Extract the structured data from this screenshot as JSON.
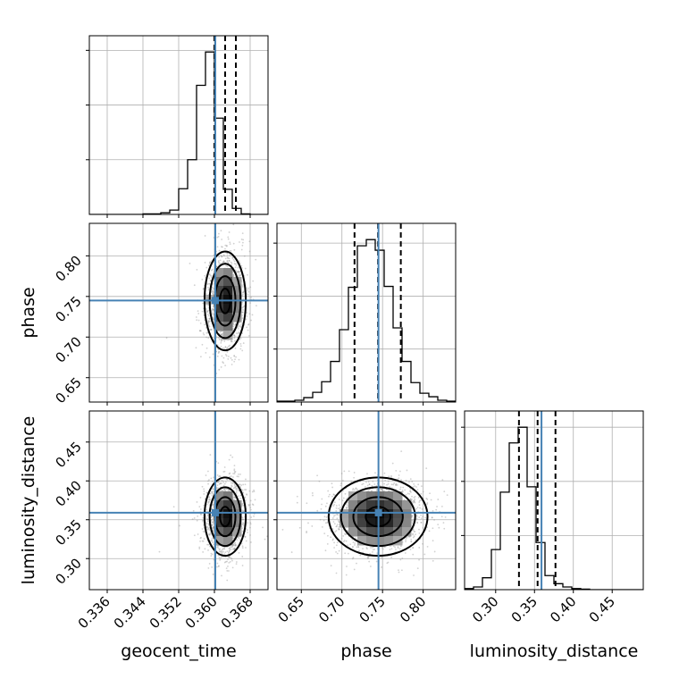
{
  "chart_data": {
    "type": "corner",
    "parameters": [
      {
        "name": "geocent_time",
        "label": "geocent_time",
        "range": [
          0.332,
          0.372
        ],
        "ticks": [
          0.336,
          0.344,
          0.352,
          0.36,
          0.368
        ],
        "tick_labels": [
          "0.336",
          "0.344",
          "0.352",
          "0.360",
          "0.368"
        ],
        "truth": 0.3602,
        "quantiles": [
          0.36,
          0.3624,
          0.3648
        ],
        "mean": 0.3624,
        "sd": 0.0022,
        "hist_bins": 20,
        "hist_counts": [
          0,
          0,
          0,
          0,
          0,
          0,
          1,
          1,
          3,
          8,
          47,
          100,
          236,
          297,
          176,
          46,
          11,
          1,
          0,
          0
        ]
      },
      {
        "name": "phase",
        "label": "phase",
        "range": [
          0.62,
          0.84
        ],
        "ticks": [
          0.65,
          0.7,
          0.75,
          0.8
        ],
        "tick_labels": [
          "0.65",
          "0.70",
          "0.75",
          "0.80"
        ],
        "truth": 0.745,
        "quantiles": [
          0.7155,
          0.7445,
          0.7725
        ],
        "mean": 0.7445,
        "sd": 0.029,
        "hist_bins": 20,
        "hist_counts": [
          1,
          1,
          2,
          5,
          11,
          23,
          46,
          82,
          130,
          177,
          184,
          172,
          131,
          84,
          46,
          22,
          10,
          6,
          2,
          1
        ]
      },
      {
        "name": "luminosity_distance",
        "label": "luminosity_distance",
        "range": [
          0.26,
          0.49
        ],
        "ticks": [
          0.3,
          0.35,
          0.4,
          0.45
        ],
        "tick_labels": [
          "0.30",
          "0.35",
          "0.40",
          "0.45"
        ],
        "truth": 0.359,
        "quantiles": [
          0.33,
          0.354,
          0.377
        ],
        "mean": 0.354,
        "sd": 0.024,
        "hist_bins": 20,
        "hist_counts": [
          2,
          5,
          22,
          74,
          180,
          271,
          300,
          190,
          87,
          26,
          11,
          5,
          2,
          1,
          0,
          0,
          0,
          0,
          0,
          0
        ]
      }
    ],
    "correlations": [
      [
        1,
        0.05,
        0.05
      ],
      [
        0.05,
        1,
        0.05
      ],
      [
        0.05,
        0.05,
        1
      ]
    ],
    "contour_levels_sigma": [
      0.5,
      1.0,
      1.5,
      2.0
    ],
    "truth_color": "#4682b4",
    "hist_color": "#000000",
    "grid": true
  }
}
